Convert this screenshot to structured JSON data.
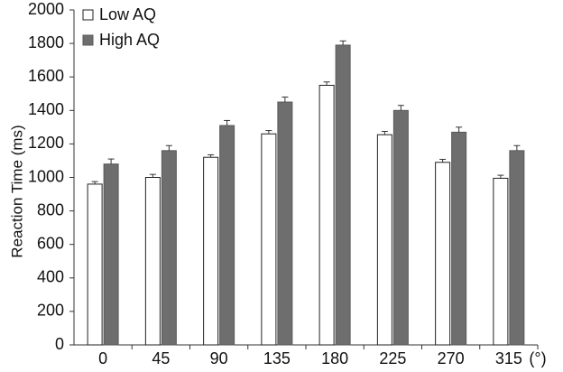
{
  "chart_data": {
    "type": "bar",
    "categories": [
      "0",
      "45",
      "90",
      "135",
      "180",
      "225",
      "270",
      "315"
    ],
    "x_unit": "(°)",
    "series": [
      {
        "name": "Low AQ",
        "color": "#ffffff",
        "values": [
          960,
          1000,
          1120,
          1260,
          1550,
          1255,
          1090,
          995
        ],
        "error": [
          15,
          18,
          15,
          20,
          20,
          20,
          18,
          18
        ]
      },
      {
        "name": "High AQ",
        "color": "#6e6e6e",
        "values": [
          1080,
          1160,
          1310,
          1450,
          1790,
          1400,
          1270,
          1160
        ],
        "error": [
          30,
          30,
          30,
          30,
          25,
          30,
          30,
          30
        ]
      }
    ],
    "ylabel": "Reaction Time (ms)",
    "xlabel": "",
    "ylim": [
      0,
      2000
    ],
    "yticks": [
      0,
      200,
      400,
      600,
      800,
      1000,
      1200,
      1400,
      1600,
      1800,
      2000
    ],
    "grid": false,
    "legend": "top-left"
  }
}
